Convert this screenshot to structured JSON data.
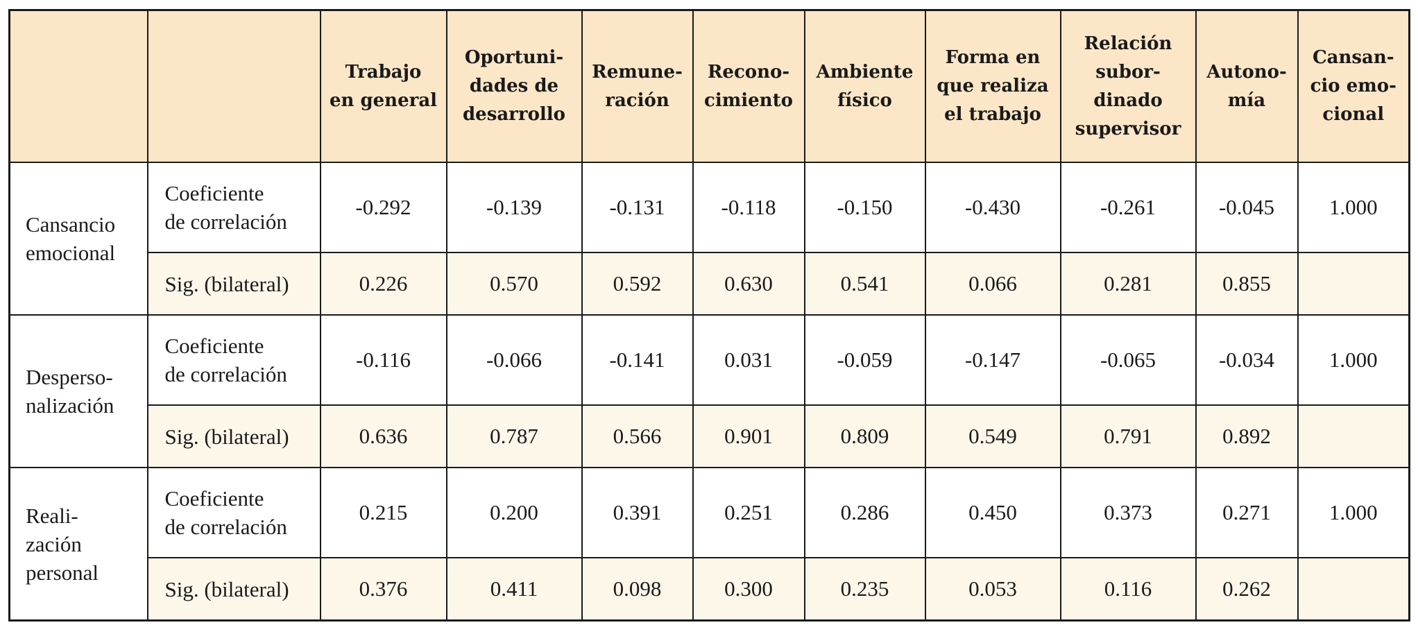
{
  "table": {
    "header": {
      "corner": [
        "",
        ""
      ],
      "columns": [
        {
          "lines": [
            "Trabajo",
            "en general"
          ]
        },
        {
          "lines": [
            "Oportuni-",
            "dades de",
            "desarrollo"
          ]
        },
        {
          "lines": [
            "Remune-",
            "ración"
          ]
        },
        {
          "lines": [
            "Recono-",
            "cimiento"
          ]
        },
        {
          "lines": [
            "Ambiente",
            "físico"
          ]
        },
        {
          "lines": [
            "Forma en",
            "que realiza",
            "el trabajo"
          ]
        },
        {
          "lines": [
            "Relación",
            "subor-",
            "dinado",
            "supervisor"
          ]
        },
        {
          "lines": [
            "Autono-",
            "mía"
          ]
        },
        {
          "lines": [
            "Cansan-",
            "cio emo-",
            "cional"
          ]
        }
      ]
    },
    "groups": [
      {
        "label_lines": [
          "Cansancio",
          "emocional"
        ],
        "rows": [
          {
            "stat_lines": [
              "Coeficiente",
              "de correlación"
            ],
            "values": [
              "-0.292",
              "-0.139",
              "-0.131",
              "-0.118",
              "-0.150",
              "-0.430",
              "-0.261",
              "-0.045",
              "1.000"
            ]
          },
          {
            "stat_lines": [
              "Sig. (bilateral)"
            ],
            "values": [
              "0.226",
              "0.570",
              "0.592",
              "0.630",
              "0.541",
              "0.066",
              "0.281",
              "0.855",
              ""
            ]
          }
        ]
      },
      {
        "label_lines": [
          "Desperso-",
          "nalización"
        ],
        "rows": [
          {
            "stat_lines": [
              "Coeficiente",
              "de correlación"
            ],
            "values": [
              "-0.116",
              "-0.066",
              "-0.141",
              "0.031",
              "-0.059",
              "-0.147",
              "-0.065",
              "-0.034",
              "1.000"
            ]
          },
          {
            "stat_lines": [
              "Sig. (bilateral)"
            ],
            "values": [
              "0.636",
              "0.787",
              "0.566",
              "0.901",
              "0.809",
              "0.549",
              "0.791",
              "0.892",
              ""
            ]
          }
        ]
      },
      {
        "label_lines": [
          "Reali-",
          "zación",
          "personal"
        ],
        "rows": [
          {
            "stat_lines": [
              "Coeficiente",
              "de correlación"
            ],
            "values": [
              "0.215",
              "0.200",
              "0.391",
              "0.251",
              "0.286",
              "0.450",
              "0.373",
              "0.271",
              "1.000"
            ]
          },
          {
            "stat_lines": [
              "Sig. (bilateral)"
            ],
            "values": [
              "0.376",
              "0.411",
              "0.098",
              "0.300",
              "0.235",
              "0.053",
              "0.116",
              "0.262",
              ""
            ]
          }
        ]
      }
    ],
    "colors": {
      "header_bg": "#fbe6c7",
      "sig_row_bg": "#fdf7ea",
      "border": "#1a1a1a"
    }
  }
}
